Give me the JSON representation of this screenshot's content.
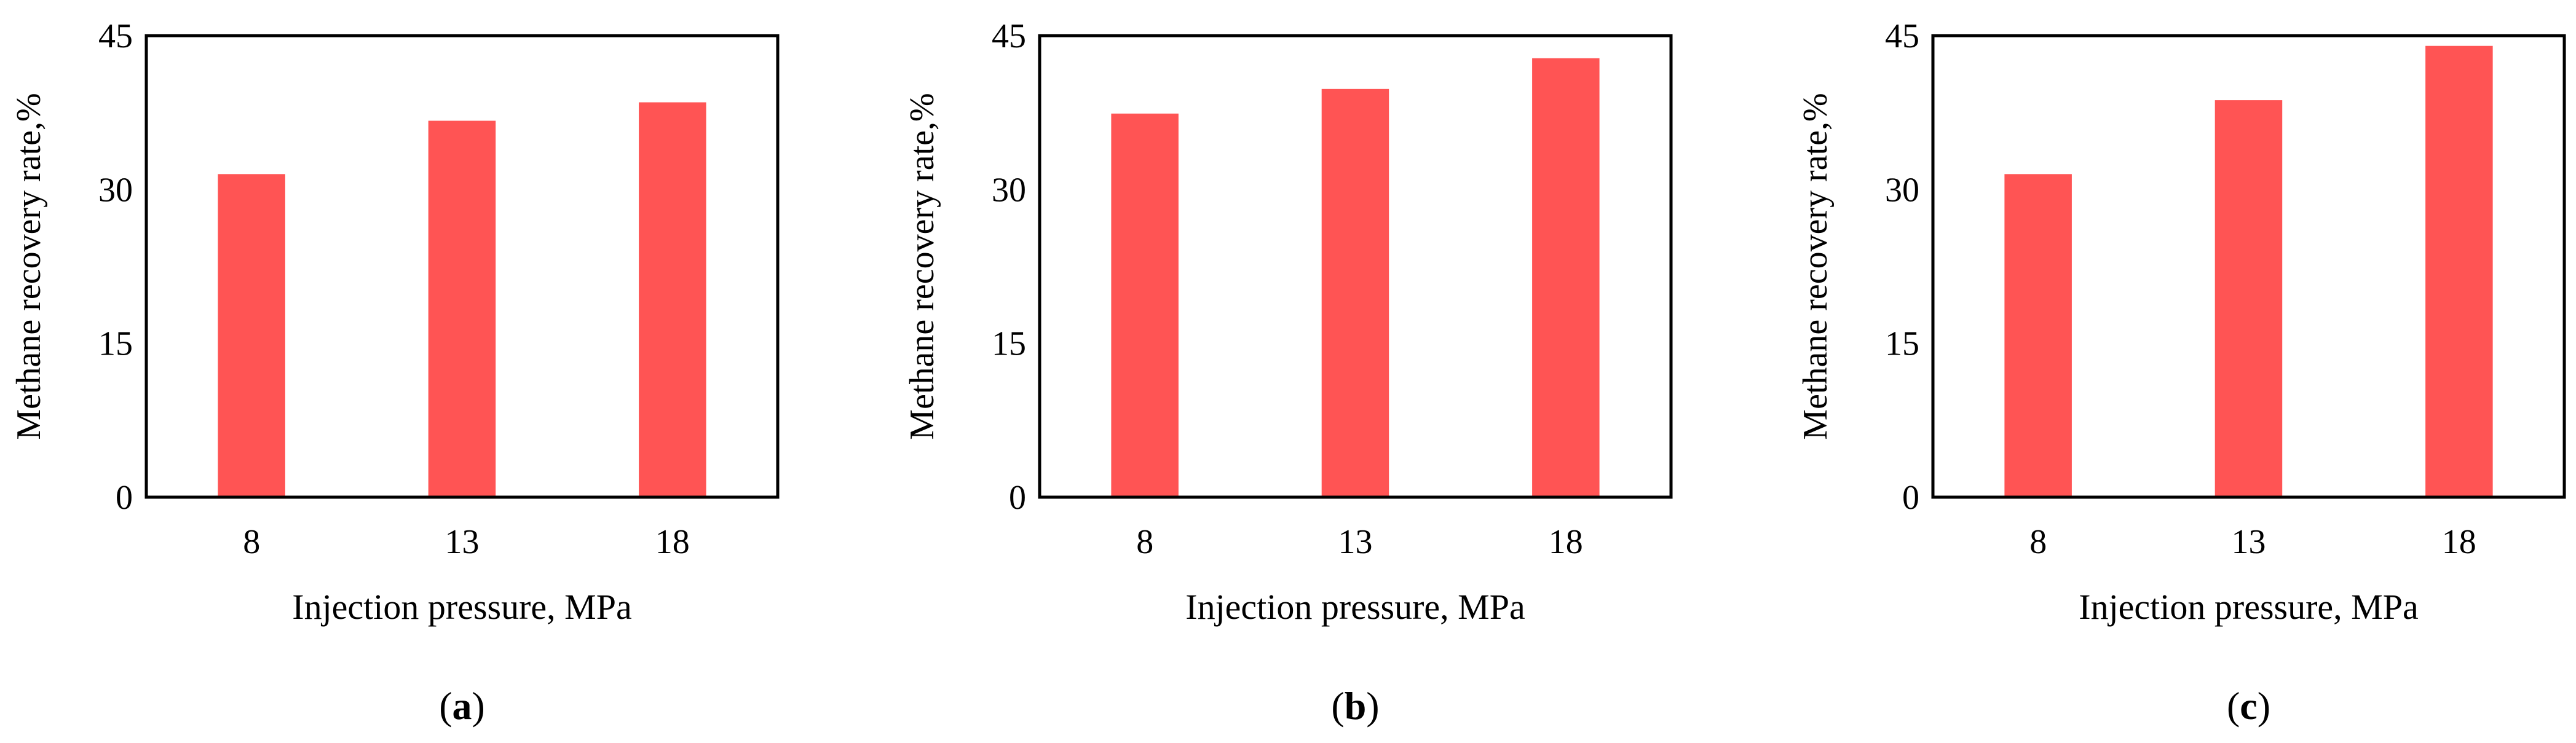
{
  "colors": {
    "bar": "#ff5454",
    "frame": "#000000",
    "text": "#000000"
  },
  "chart_data": [
    {
      "type": "bar",
      "panel_label": "a",
      "categories": [
        "8",
        "13",
        "18"
      ],
      "values": [
        31.5,
        36.7,
        38.5
      ],
      "xlabel": "Injection pressure, MPa",
      "ylabel": "Methane recovery rate,%",
      "ylim": [
        0,
        45
      ],
      "yticks": [
        "0",
        "15",
        "30",
        "45"
      ],
      "grid": false
    },
    {
      "type": "bar",
      "panel_label": "b",
      "categories": [
        "8",
        "13",
        "18"
      ],
      "values": [
        37.4,
        39.8,
        42.8
      ],
      "xlabel": "Injection pressure, MPa",
      "ylabel": "Methane recovery rate,%",
      "ylim": [
        0,
        45
      ],
      "yticks": [
        "0",
        "15",
        "30",
        "45"
      ],
      "grid": false
    },
    {
      "type": "bar",
      "panel_label": "c",
      "categories": [
        "8",
        "13",
        "18"
      ],
      "values": [
        31.5,
        38.7,
        44.0
      ],
      "xlabel": "Injection pressure, MPa",
      "ylabel": "Methane recovery rate,%",
      "ylim": [
        0,
        45
      ],
      "yticks": [
        "0",
        "15",
        "30",
        "45"
      ],
      "grid": false
    }
  ]
}
